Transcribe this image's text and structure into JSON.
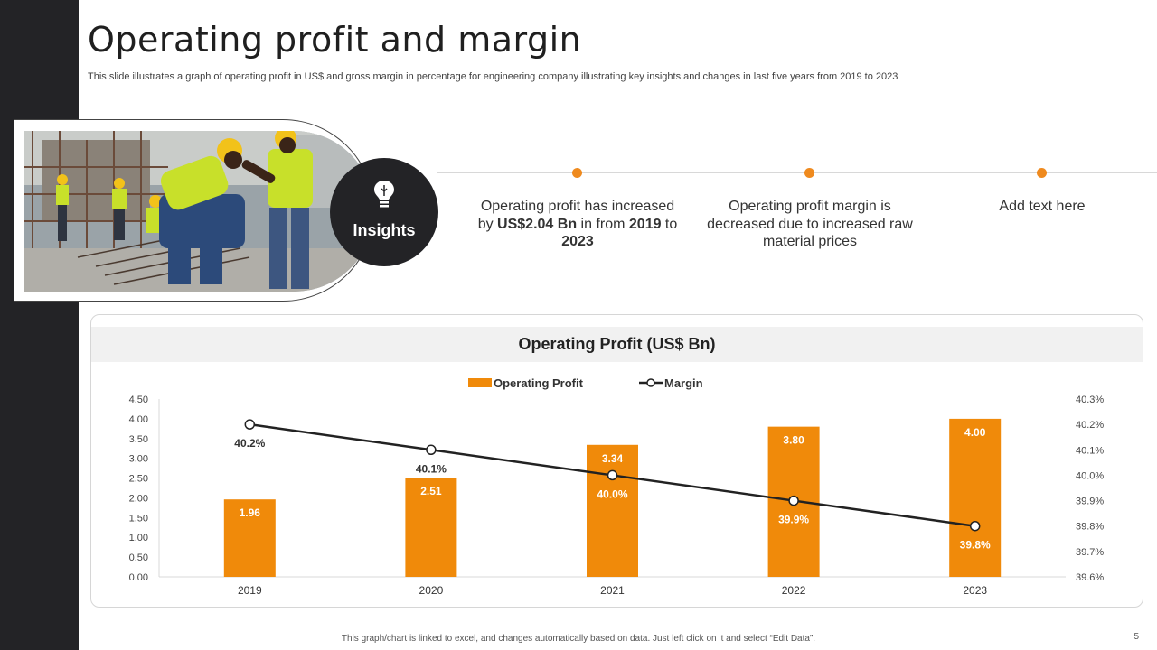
{
  "slide": {
    "title": "Operating profit and margin",
    "subtitle": "This slide illustrates a graph of operating profit in US$ and gross margin in percentage for engineering company illustrating key insights and changes in last five years from 2019 to 2023",
    "footer_note": "This graph/chart is linked to excel, and changes automatically based on data. Just left click on it and select “Edit Data”.",
    "page_number": "5"
  },
  "insights": {
    "label": "Insights",
    "icon": "lightbulb-icon",
    "items": [
      {
        "parts": [
          "Operating profit has increased by ",
          "US$2.04 Bn",
          " in from ",
          "2019",
          " to ",
          "2023"
        ]
      },
      {
        "text": "Operating profit margin is decreased due to increased raw material prices"
      },
      {
        "text": "Add text here"
      }
    ]
  },
  "colors": {
    "accent": "#ef8a1e",
    "dark": "#232326",
    "line": "#222222",
    "bar": "#f08a0a"
  },
  "chart_data": {
    "type": "bar",
    "title": "Operating Profit (US$ Bn)",
    "categories": [
      "2019",
      "2020",
      "2021",
      "2022",
      "2023"
    ],
    "series": [
      {
        "name": "Operating Profit",
        "type": "bar",
        "axis": "left",
        "values": [
          1.96,
          2.51,
          3.34,
          3.8,
          4.0
        ],
        "labels": [
          "1.96",
          "2.51",
          "3.34",
          "3.80",
          "4.00"
        ]
      },
      {
        "name": "Margin",
        "type": "line",
        "axis": "right",
        "values": [
          40.2,
          40.1,
          40.0,
          39.9,
          39.8
        ],
        "labels": [
          "40.2%",
          "40.1%",
          "40.0%",
          "39.9%",
          "39.8%"
        ]
      }
    ],
    "y_left": {
      "min": 0,
      "max": 4.5,
      "step": 0.5,
      "ticks": [
        "0.00",
        "0.50",
        "1.00",
        "1.50",
        "2.00",
        "2.50",
        "3.00",
        "3.50",
        "4.00",
        "4.50"
      ]
    },
    "y_right": {
      "min": 39.6,
      "max": 40.3,
      "step": 0.1,
      "ticks": [
        "39.6%",
        "39.7%",
        "39.8%",
        "39.9%",
        "40.0%",
        "40.1%",
        "40.2%",
        "40.3%"
      ]
    },
    "legend_position": "top-center",
    "grid": false
  }
}
